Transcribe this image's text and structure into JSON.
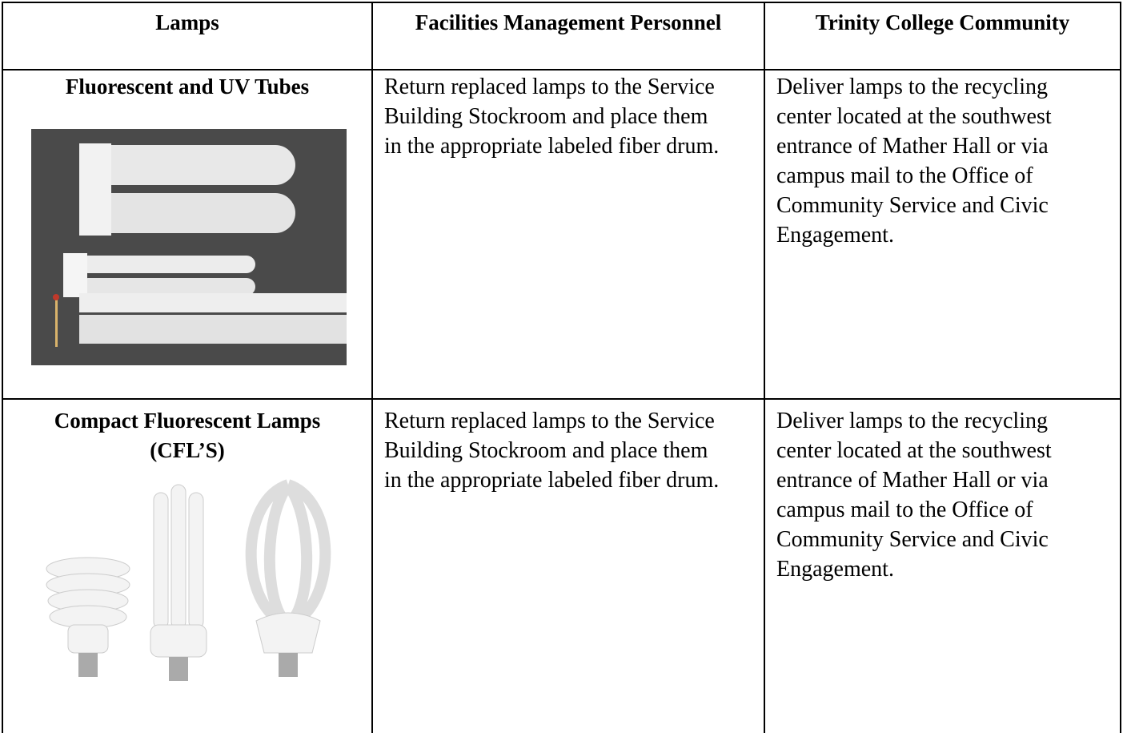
{
  "table": {
    "header": [
      "Lamps",
      "Facilities Management Personnel",
      "Trinity College Community"
    ],
    "rows": [
      [
        "Fluorescent and UV Tubes",
        "Return replaced lamps to the Service Building Stockroom and place them in the appropriate labeled fiber drum.",
        "Deliver lamps to the recycling center located at the southwest entrance of Mather Hall or via campus mail to the Office of Community Service and Civic Engagement."
      ],
      [
        "Compact Fluorescent Lamps (CFL’S)",
        "Return replaced lamps to the Service Building Stockroom and place them in the appropriate labeled fiber drum.",
        "Deliver lamps to the recycling center located at the southwest entrance of Mather Hall or via campus mail to the Office of Community Service and Civic Engagement."
      ]
    ]
  }
}
